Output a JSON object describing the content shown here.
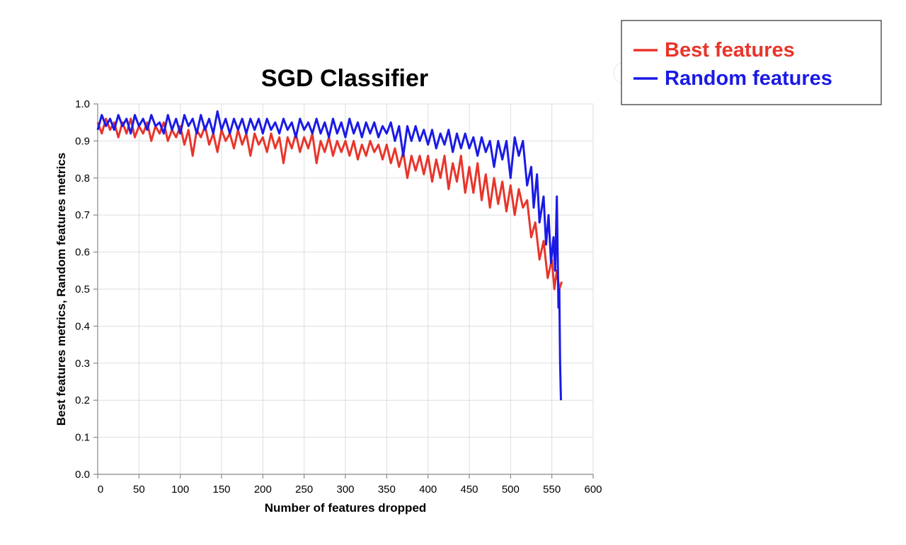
{
  "chart_data": {
    "type": "line",
    "title": "SGD Classifier",
    "xlabel": "Number of features dropped",
    "ylabel": "Best features metrics, Random features metrics",
    "xlim": [
      0,
      600
    ],
    "ylim": [
      0,
      1.0
    ],
    "x_ticks": [
      0,
      50,
      100,
      150,
      200,
      250,
      300,
      350,
      400,
      450,
      500,
      550,
      600
    ],
    "y_ticks": [
      "0.0",
      "0.1",
      "0.2",
      "0.3",
      "0.4",
      "0.5",
      "0.6",
      "0.7",
      "0.8",
      "0.9",
      "1.0"
    ],
    "grid": true,
    "legend_position": "top-right",
    "series": [
      {
        "name": "Best features",
        "color": "#e8352b",
        "points": [
          [
            0,
            0.95
          ],
          [
            5,
            0.92
          ],
          [
            10,
            0.96
          ],
          [
            15,
            0.93
          ],
          [
            20,
            0.95
          ],
          [
            25,
            0.91
          ],
          [
            30,
            0.95
          ],
          [
            35,
            0.92
          ],
          [
            40,
            0.96
          ],
          [
            45,
            0.91
          ],
          [
            50,
            0.94
          ],
          [
            55,
            0.92
          ],
          [
            60,
            0.95
          ],
          [
            65,
            0.9
          ],
          [
            70,
            0.94
          ],
          [
            75,
            0.92
          ],
          [
            80,
            0.95
          ],
          [
            85,
            0.9
          ],
          [
            90,
            0.93
          ],
          [
            95,
            0.91
          ],
          [
            100,
            0.94
          ],
          [
            105,
            0.89
          ],
          [
            110,
            0.93
          ],
          [
            115,
            0.86
          ],
          [
            120,
            0.93
          ],
          [
            125,
            0.91
          ],
          [
            130,
            0.94
          ],
          [
            135,
            0.89
          ],
          [
            140,
            0.92
          ],
          [
            145,
            0.87
          ],
          [
            150,
            0.93
          ],
          [
            155,
            0.9
          ],
          [
            160,
            0.92
          ],
          [
            165,
            0.88
          ],
          [
            170,
            0.93
          ],
          [
            175,
            0.89
          ],
          [
            180,
            0.92
          ],
          [
            185,
            0.86
          ],
          [
            190,
            0.92
          ],
          [
            195,
            0.89
          ],
          [
            200,
            0.91
          ],
          [
            205,
            0.87
          ],
          [
            210,
            0.92
          ],
          [
            215,
            0.88
          ],
          [
            220,
            0.91
          ],
          [
            225,
            0.84
          ],
          [
            230,
            0.91
          ],
          [
            235,
            0.88
          ],
          [
            240,
            0.92
          ],
          [
            245,
            0.87
          ],
          [
            250,
            0.91
          ],
          [
            255,
            0.88
          ],
          [
            260,
            0.92
          ],
          [
            265,
            0.84
          ],
          [
            270,
            0.9
          ],
          [
            275,
            0.87
          ],
          [
            280,
            0.91
          ],
          [
            285,
            0.86
          ],
          [
            290,
            0.9
          ],
          [
            295,
            0.87
          ],
          [
            300,
            0.9
          ],
          [
            305,
            0.86
          ],
          [
            310,
            0.9
          ],
          [
            315,
            0.85
          ],
          [
            320,
            0.89
          ],
          [
            325,
            0.86
          ],
          [
            330,
            0.9
          ],
          [
            335,
            0.87
          ],
          [
            340,
            0.89
          ],
          [
            345,
            0.85
          ],
          [
            350,
            0.89
          ],
          [
            355,
            0.84
          ],
          [
            360,
            0.88
          ],
          [
            365,
            0.83
          ],
          [
            370,
            0.87
          ],
          [
            375,
            0.8
          ],
          [
            380,
            0.86
          ],
          [
            385,
            0.82
          ],
          [
            390,
            0.86
          ],
          [
            395,
            0.81
          ],
          [
            400,
            0.86
          ],
          [
            405,
            0.79
          ],
          [
            410,
            0.85
          ],
          [
            415,
            0.8
          ],
          [
            420,
            0.86
          ],
          [
            425,
            0.77
          ],
          [
            430,
            0.84
          ],
          [
            435,
            0.79
          ],
          [
            440,
            0.86
          ],
          [
            445,
            0.76
          ],
          [
            450,
            0.83
          ],
          [
            455,
            0.76
          ],
          [
            460,
            0.84
          ],
          [
            465,
            0.74
          ],
          [
            470,
            0.81
          ],
          [
            475,
            0.72
          ],
          [
            480,
            0.8
          ],
          [
            485,
            0.73
          ],
          [
            490,
            0.79
          ],
          [
            495,
            0.71
          ],
          [
            500,
            0.78
          ],
          [
            505,
            0.7
          ],
          [
            510,
            0.77
          ],
          [
            515,
            0.72
          ],
          [
            520,
            0.74
          ],
          [
            525,
            0.64
          ],
          [
            530,
            0.68
          ],
          [
            535,
            0.58
          ],
          [
            540,
            0.63
          ],
          [
            545,
            0.53
          ],
          [
            550,
            0.58
          ],
          [
            553,
            0.5
          ],
          [
            556,
            0.55
          ],
          [
            559,
            0.5
          ],
          [
            562,
            0.52
          ]
        ]
      },
      {
        "name": "Random features",
        "color": "#1a1ae6",
        "points": [
          [
            0,
            0.93
          ],
          [
            5,
            0.97
          ],
          [
            10,
            0.94
          ],
          [
            15,
            0.96
          ],
          [
            20,
            0.93
          ],
          [
            25,
            0.97
          ],
          [
            30,
            0.94
          ],
          [
            35,
            0.96
          ],
          [
            40,
            0.92
          ],
          [
            45,
            0.97
          ],
          [
            50,
            0.94
          ],
          [
            55,
            0.96
          ],
          [
            60,
            0.93
          ],
          [
            65,
            0.97
          ],
          [
            70,
            0.94
          ],
          [
            75,
            0.95
          ],
          [
            80,
            0.92
          ],
          [
            85,
            0.97
          ],
          [
            90,
            0.93
          ],
          [
            95,
            0.96
          ],
          [
            100,
            0.92
          ],
          [
            105,
            0.97
          ],
          [
            110,
            0.94
          ],
          [
            115,
            0.96
          ],
          [
            120,
            0.92
          ],
          [
            125,
            0.97
          ],
          [
            130,
            0.93
          ],
          [
            135,
            0.96
          ],
          [
            140,
            0.92
          ],
          [
            145,
            0.98
          ],
          [
            150,
            0.93
          ],
          [
            155,
            0.96
          ],
          [
            160,
            0.92
          ],
          [
            165,
            0.96
          ],
          [
            170,
            0.93
          ],
          [
            175,
            0.96
          ],
          [
            180,
            0.92
          ],
          [
            185,
            0.96
          ],
          [
            190,
            0.93
          ],
          [
            195,
            0.96
          ],
          [
            200,
            0.92
          ],
          [
            205,
            0.96
          ],
          [
            210,
            0.93
          ],
          [
            215,
            0.95
          ],
          [
            220,
            0.92
          ],
          [
            225,
            0.96
          ],
          [
            230,
            0.93
          ],
          [
            235,
            0.95
          ],
          [
            240,
            0.91
          ],
          [
            245,
            0.96
          ],
          [
            250,
            0.93
          ],
          [
            255,
            0.95
          ],
          [
            260,
            0.92
          ],
          [
            265,
            0.96
          ],
          [
            270,
            0.92
          ],
          [
            275,
            0.95
          ],
          [
            280,
            0.91
          ],
          [
            285,
            0.96
          ],
          [
            290,
            0.92
          ],
          [
            295,
            0.95
          ],
          [
            300,
            0.91
          ],
          [
            305,
            0.96
          ],
          [
            310,
            0.92
          ],
          [
            315,
            0.95
          ],
          [
            320,
            0.91
          ],
          [
            325,
            0.95
          ],
          [
            330,
            0.92
          ],
          [
            335,
            0.95
          ],
          [
            340,
            0.91
          ],
          [
            345,
            0.94
          ],
          [
            350,
            0.92
          ],
          [
            355,
            0.95
          ],
          [
            360,
            0.9
          ],
          [
            365,
            0.94
          ],
          [
            370,
            0.86
          ],
          [
            375,
            0.94
          ],
          [
            380,
            0.9
          ],
          [
            385,
            0.94
          ],
          [
            390,
            0.9
          ],
          [
            395,
            0.93
          ],
          [
            400,
            0.89
          ],
          [
            405,
            0.93
          ],
          [
            410,
            0.88
          ],
          [
            415,
            0.92
          ],
          [
            420,
            0.89
          ],
          [
            425,
            0.93
          ],
          [
            430,
            0.87
          ],
          [
            435,
            0.92
          ],
          [
            440,
            0.88
          ],
          [
            445,
            0.92
          ],
          [
            450,
            0.88
          ],
          [
            455,
            0.91
          ],
          [
            460,
            0.86
          ],
          [
            465,
            0.91
          ],
          [
            470,
            0.87
          ],
          [
            475,
            0.9
          ],
          [
            480,
            0.83
          ],
          [
            485,
            0.9
          ],
          [
            490,
            0.85
          ],
          [
            495,
            0.9
          ],
          [
            500,
            0.8
          ],
          [
            505,
            0.91
          ],
          [
            510,
            0.86
          ],
          [
            515,
            0.9
          ],
          [
            520,
            0.78
          ],
          [
            525,
            0.83
          ],
          [
            528,
            0.72
          ],
          [
            532,
            0.81
          ],
          [
            535,
            0.68
          ],
          [
            540,
            0.75
          ],
          [
            543,
            0.62
          ],
          [
            546,
            0.7
          ],
          [
            549,
            0.57
          ],
          [
            552,
            0.64
          ],
          [
            554,
            0.55
          ],
          [
            556,
            0.75
          ],
          [
            558,
            0.45
          ],
          [
            559,
            0.5
          ],
          [
            560,
            0.3
          ],
          [
            561,
            0.2
          ]
        ]
      }
    ]
  }
}
